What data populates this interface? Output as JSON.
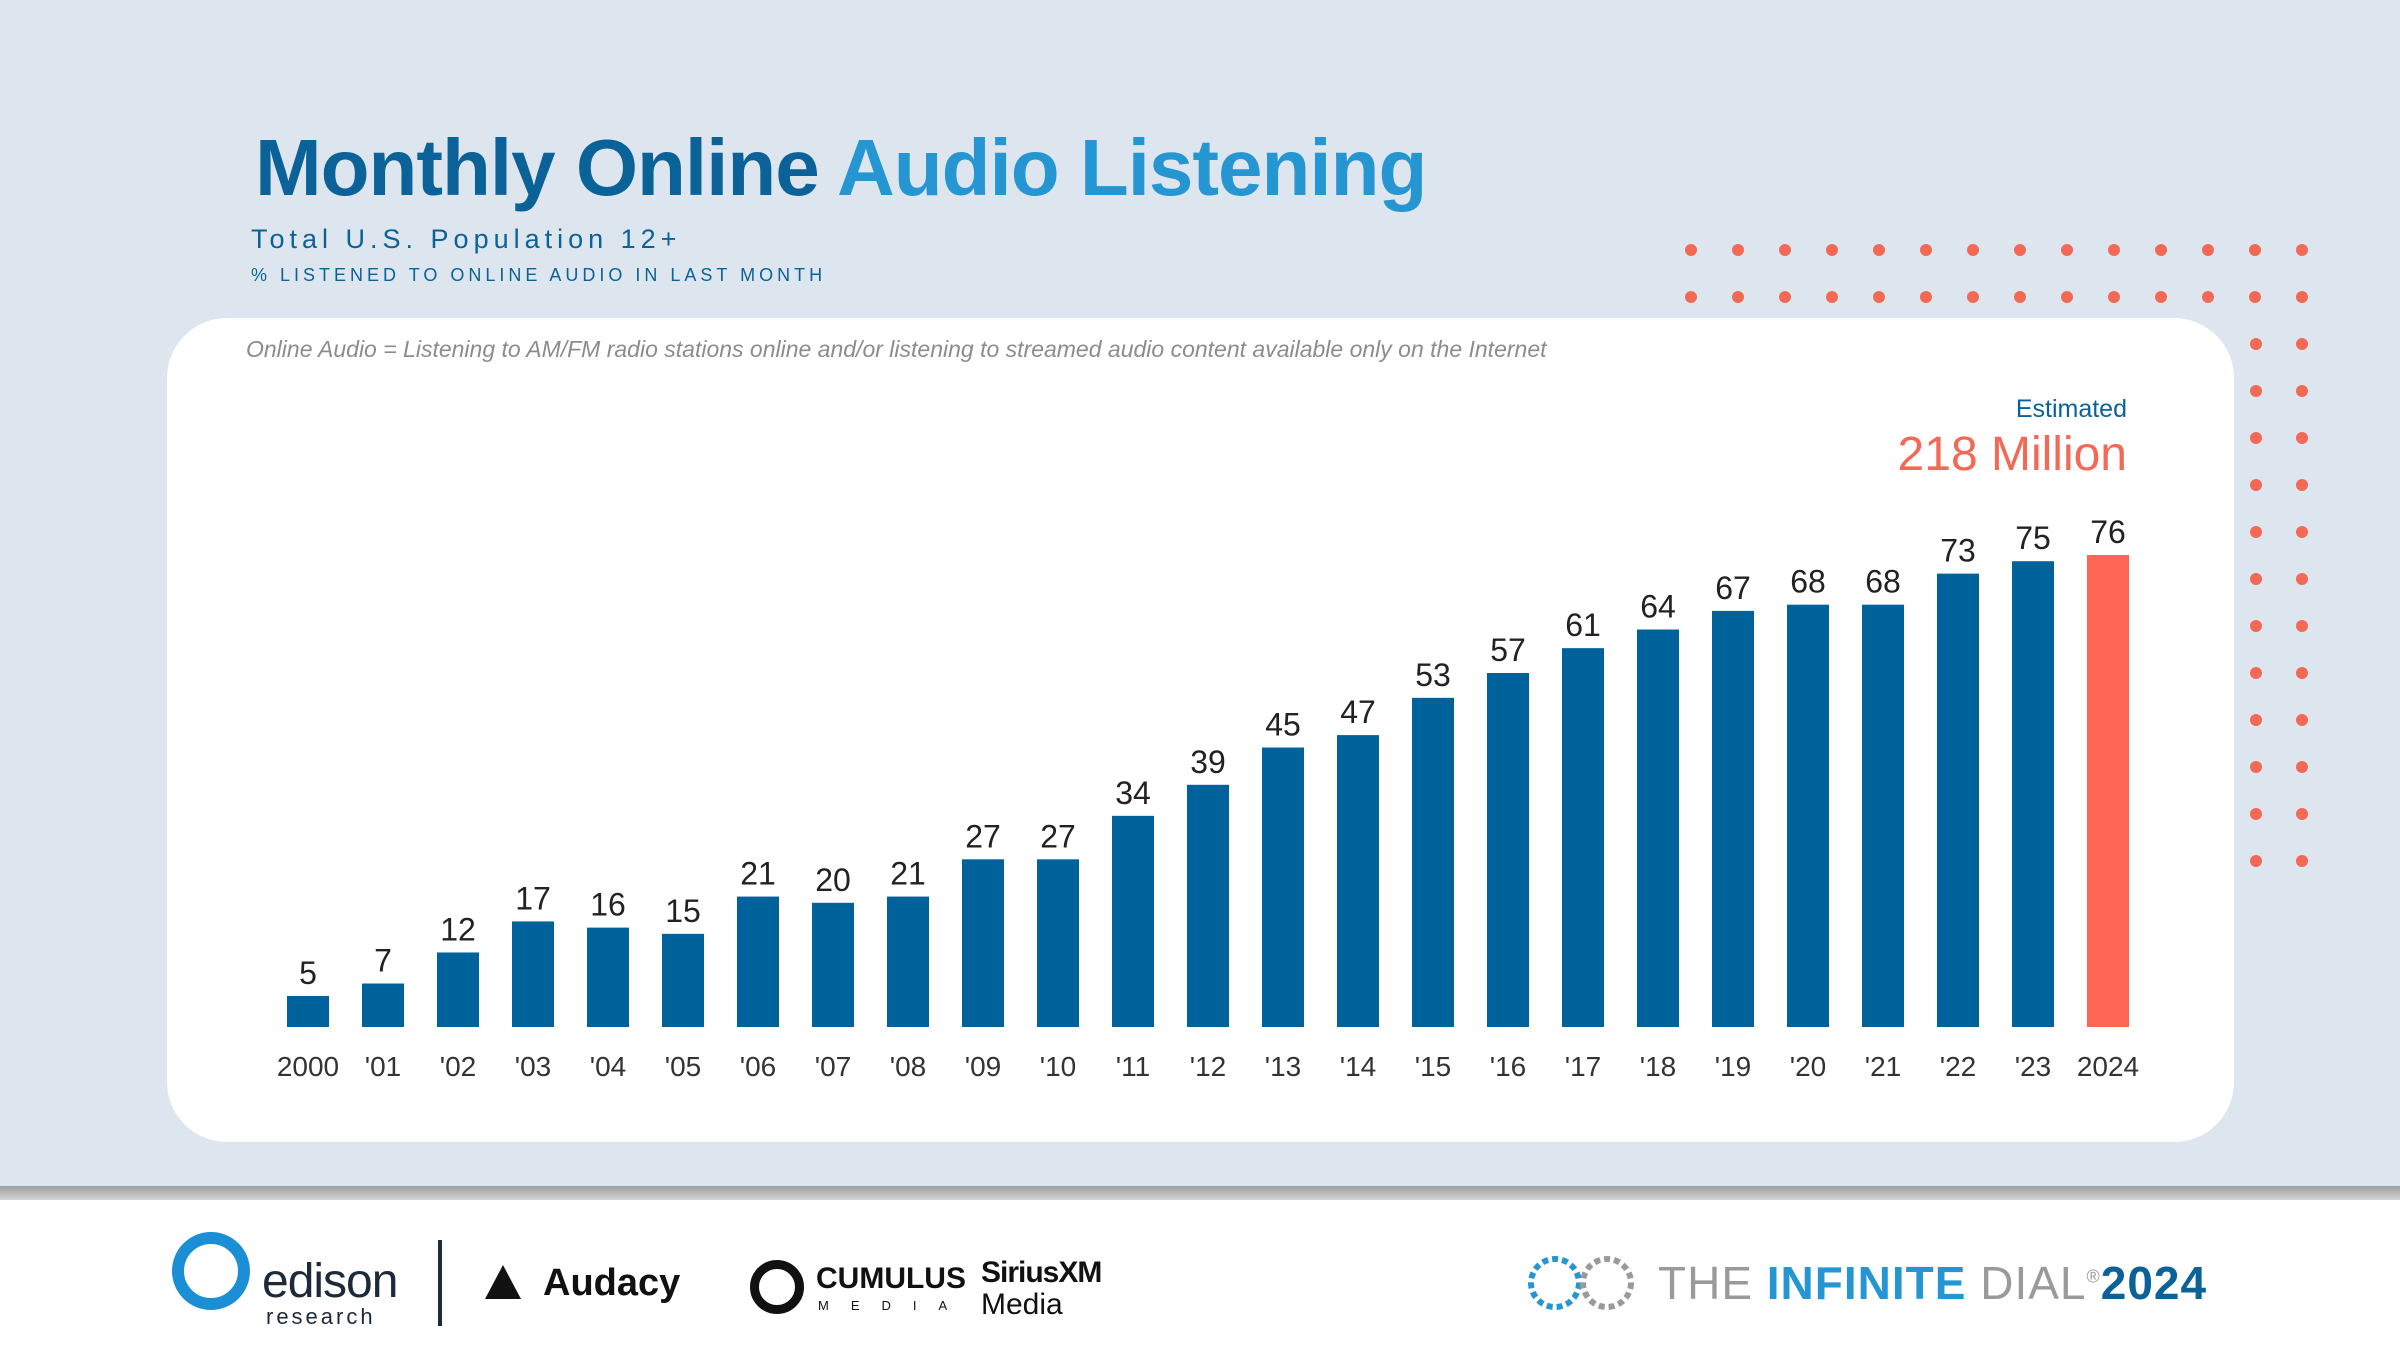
{
  "title": {
    "part1": "Monthly Online",
    "part2": "Audio Listening"
  },
  "subtitle": "Total U.S. Population 12+",
  "sublabel": "% LISTENED TO ONLINE AUDIO IN LAST MONTH",
  "note": "Online Audio = Listening to AM/FM radio stations online and/or listening to streamed audio content available only on the Internet",
  "estimate": {
    "label": "Estimated",
    "value": "218 Million"
  },
  "colors": {
    "bar": "#00629b",
    "highlight": "#ff6654",
    "title_dark": "#0a6298",
    "title_light": "#2596d2",
    "dots": "#f26a55"
  },
  "chart_data": {
    "type": "bar",
    "title": "Monthly Online Audio Listening",
    "xlabel": "",
    "ylabel": "% listened to online audio in last month",
    "ylim": [
      0,
      80
    ],
    "grid": false,
    "categories": [
      "2000",
      "'01",
      "'02",
      "'03",
      "'04",
      "'05",
      "'06",
      "'07",
      "'08",
      "'09",
      "'10",
      "'11",
      "'12",
      "'13",
      "'14",
      "'15",
      "'16",
      "'17",
      "'18",
      "'19",
      "'20",
      "'21",
      "'22",
      "'23",
      "2024"
    ],
    "values": [
      5,
      7,
      12,
      17,
      16,
      15,
      21,
      20,
      21,
      27,
      27,
      34,
      39,
      45,
      47,
      53,
      57,
      61,
      64,
      67,
      68,
      68,
      73,
      75,
      76
    ],
    "highlight_index": 24
  },
  "footer": {
    "edison_name": "edison",
    "edison_sub": "research",
    "audacy": "Audacy",
    "cumulus": "CUMULUS",
    "cumulus_sub": "MEDIA",
    "sirius_line1": "SiriusXM",
    "sirius_line2": "Media",
    "dial_the": "THE ",
    "dial_infinite": "INFINITE",
    "dial_dial": " DIAL",
    "dial_reg": "®",
    "dial_year": "2024"
  }
}
